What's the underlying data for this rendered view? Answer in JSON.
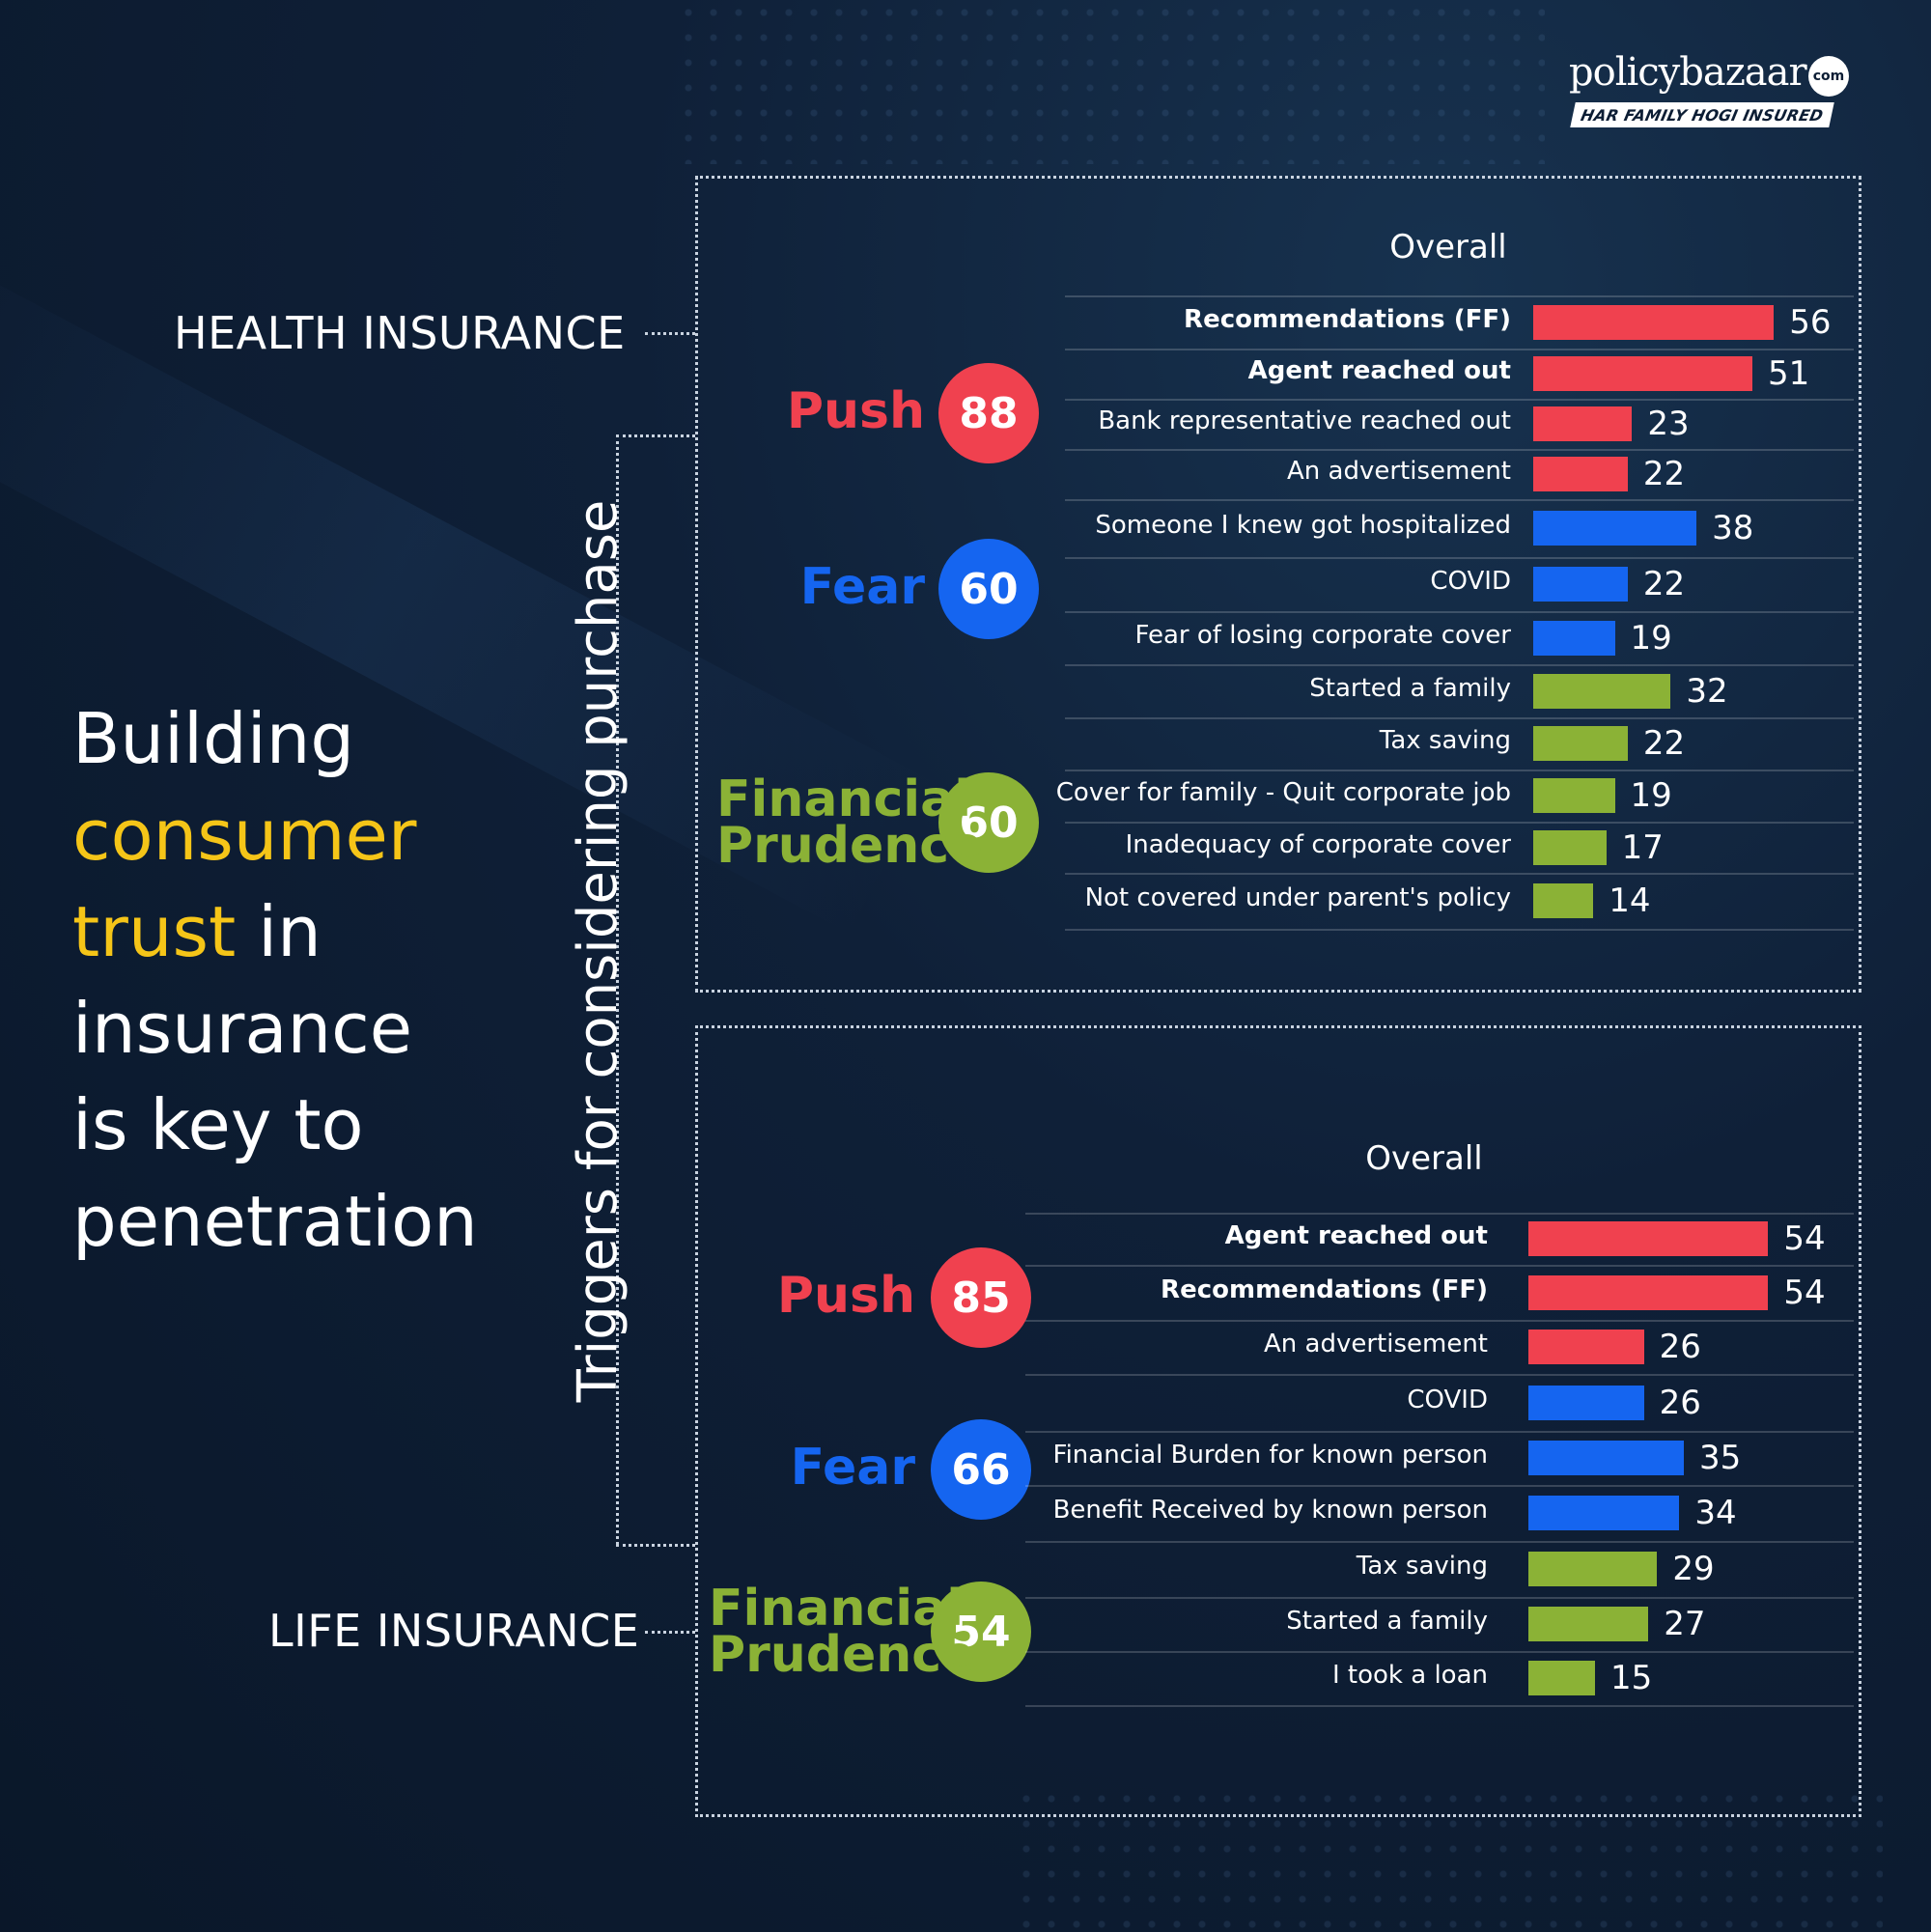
{
  "brand": {
    "logo_word": "policybazaar",
    "logo_com": "com",
    "tagline": "HAR FAMILY HOGI INSURED"
  },
  "heading": {
    "line1": "Building",
    "line2": "consumer",
    "line3a": "trust",
    "line3b": " in",
    "line4": "insurance",
    "line5": "is key to",
    "line6": "penetration"
  },
  "side_labels": {
    "health": "HEALTH INSURANCE",
    "life": "LIFE INSURANCE",
    "vertical": "Triggers for considering purchase"
  },
  "colors": {
    "push": "#f0414f",
    "fear": "#1565f0",
    "financial_prudence": "#8bb236",
    "highlight": "#f5c518"
  },
  "chart_data": [
    {
      "type": "bar",
      "title": "Overall",
      "groups": [
        {
          "name": "Push",
          "score": 88,
          "color": "#f0414f",
          "items": [
            {
              "label": "Recommendations (FF)",
              "value": 56,
              "bold": true
            },
            {
              "label": "Agent reached out",
              "value": 51,
              "bold": true
            },
            {
              "label": "Bank representative reached out",
              "value": 23
            },
            {
              "label": "An advertisement",
              "value": 22
            }
          ]
        },
        {
          "name": "Fear",
          "score": 60,
          "color": "#1565f0",
          "items": [
            {
              "label": "Someone I knew got hospitalized",
              "value": 38
            },
            {
              "label": "COVID",
              "value": 22
            },
            {
              "label": "Fear of losing corporate cover",
              "value": 19
            }
          ]
        },
        {
          "name": "Financial Prudence",
          "score": 60,
          "color": "#8bb236",
          "items": [
            {
              "label": "Started a family",
              "value": 32
            },
            {
              "label": "Tax saving",
              "value": 22
            },
            {
              "label": "Cover for family - Quit corporate job",
              "value": 19
            },
            {
              "label": "Inadequacy of corporate cover",
              "value": 17
            },
            {
              "label": "Not covered under parent's policy",
              "value": 14
            }
          ]
        }
      ]
    },
    {
      "type": "bar",
      "title": "Overall",
      "groups": [
        {
          "name": "Push",
          "score": 85,
          "color": "#f0414f",
          "items": [
            {
              "label": "Agent reached out",
              "value": 54,
              "bold": true
            },
            {
              "label": "Recommendations (FF)",
              "value": 54,
              "bold": true
            },
            {
              "label": "An advertisement",
              "value": 26
            }
          ]
        },
        {
          "name": "Fear",
          "score": 66,
          "color": "#1565f0",
          "items": [
            {
              "label": "COVID",
              "value": 26
            },
            {
              "label": "Financial Burden for known person",
              "value": 35
            },
            {
              "label": "Benefit Received by known person",
              "value": 34
            }
          ]
        },
        {
          "name": "Financial Prudence",
          "score": 54,
          "color": "#8bb236",
          "items": [
            {
              "label": "Tax saving",
              "value": 29
            },
            {
              "label": "Started a family",
              "value": 27
            },
            {
              "label": "I took a loan",
              "value": 15
            }
          ]
        }
      ]
    }
  ]
}
